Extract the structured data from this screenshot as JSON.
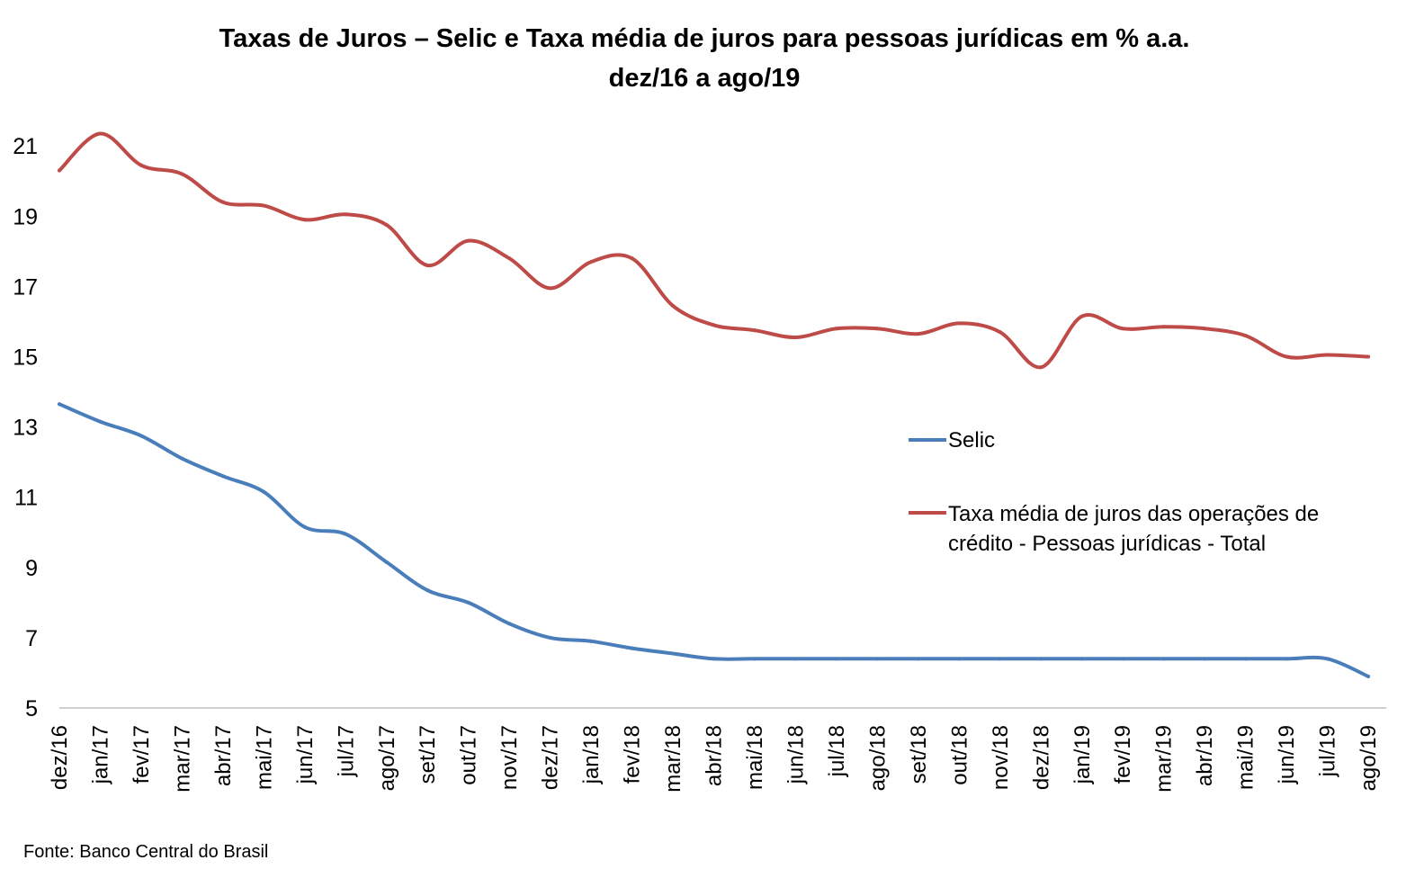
{
  "chart_data": {
    "type": "line",
    "title_line1": "Taxas de Juros – Selic e Taxa média de juros para pessoas jurídicas em % a.a.",
    "title_line2": "dez/16 a ago/19",
    "xlabel": "",
    "ylabel": "",
    "ylim": [
      5,
      22
    ],
    "yticks": [
      5,
      7,
      9,
      11,
      13,
      15,
      17,
      19,
      21
    ],
    "grid": false,
    "legend_position": "center-right",
    "categories": [
      "dez/16",
      "jan/17",
      "fev/17",
      "mar/17",
      "abr/17",
      "mai/17",
      "jun/17",
      "jul/17",
      "ago/17",
      "set/17",
      "out/17",
      "nov/17",
      "dez/17",
      "jan/18",
      "fev/18",
      "mar/18",
      "abr/18",
      "mai/18",
      "jun/18",
      "jul/18",
      "ago/18",
      "set/18",
      "out/18",
      "nov/18",
      "dez/18",
      "jan/19",
      "fev/19",
      "mar/19",
      "abr/19",
      "mai/19",
      "jun/19",
      "jul/19",
      "ago/19"
    ],
    "series": [
      {
        "name": "Selic",
        "color": "#4a7ebb",
        "values": [
          13.65,
          13.15,
          12.75,
          12.1,
          11.6,
          11.15,
          10.15,
          9.95,
          9.15,
          8.35,
          8.0,
          7.4,
          7.0,
          6.9,
          6.7,
          6.55,
          6.4,
          6.4,
          6.4,
          6.4,
          6.4,
          6.4,
          6.4,
          6.4,
          6.4,
          6.4,
          6.4,
          6.4,
          6.4,
          6.4,
          6.4,
          6.4,
          5.9
        ]
      },
      {
        "name": " Taxa média de juros das operações de crédito - Pessoas jurídicas - Total",
        "legend_line1": " Taxa média de juros das operações de",
        "legend_line2": "crédito - Pessoas jurídicas - Total",
        "color": "#be4b48",
        "values": [
          20.3,
          21.35,
          20.45,
          20.2,
          19.4,
          19.3,
          18.9,
          19.05,
          18.75,
          17.6,
          18.3,
          17.8,
          16.95,
          17.7,
          17.8,
          16.45,
          15.9,
          15.75,
          15.55,
          15.8,
          15.8,
          15.65,
          15.95,
          15.7,
          14.7,
          16.15,
          15.8,
          15.85,
          15.8,
          15.6,
          15.0,
          15.05,
          15.0
        ]
      }
    ]
  },
  "source": "Fonte: Banco Central do Brasil"
}
